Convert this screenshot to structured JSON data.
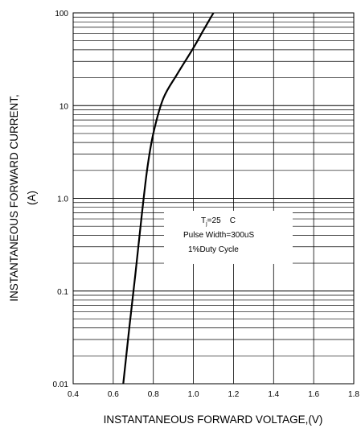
{
  "chart_data": {
    "type": "line",
    "xlabel": "INSTANTANEOUS FORWARD VOLTAGE,(V)",
    "ylabel_line1": "INSTANTANEOUS FORWARD CURRENT,",
    "ylabel_line2": "(A)",
    "xlim": [
      0.4,
      1.8
    ],
    "ylim": [
      0.01,
      100
    ],
    "yscale": "log",
    "x_ticks": [
      0.4,
      0.6,
      0.8,
      1.0,
      1.2,
      1.4,
      1.6,
      1.8
    ],
    "x_tick_labels": [
      "0.4",
      "0.6",
      "0.8",
      "1.0",
      "1.2",
      "1.4",
      "1.6",
      "1.8"
    ],
    "y_ticks": [
      0.01,
      0.1,
      1.0,
      10,
      100
    ],
    "y_tick_labels": [
      "0.01",
      "0.1",
      "1.0",
      "10",
      "100"
    ],
    "grid": true,
    "series": [
      {
        "x": [
          0.65,
          0.68,
          0.71,
          0.74,
          0.77,
          0.8,
          0.85,
          0.92,
          1.0,
          1.05,
          1.1
        ],
        "y": [
          0.01,
          0.04,
          0.15,
          0.6,
          2.1,
          5.0,
          12,
          22,
          42,
          65,
          100
        ]
      }
    ],
    "legend": {
      "position": "center-right",
      "line1_main": "T",
      "line1_sub": "j",
      "line1_rest": "=25    C",
      "line2": "Pulse Width=300uS",
      "line3": "1%Duty Cycle"
    }
  }
}
